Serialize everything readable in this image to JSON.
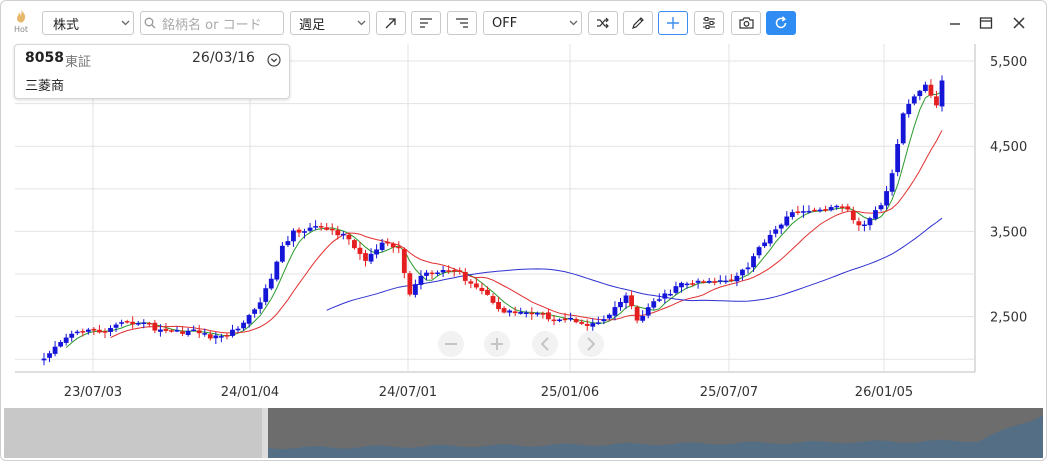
{
  "toolbar": {
    "hot_label": "Hot",
    "type_select": "株式",
    "search_placeholder": "銘柄名 or コード",
    "period_select": "週足",
    "compare_select": "OFF"
  },
  "info": {
    "code": "8058",
    "exchange": "東証",
    "date": "26/03/16",
    "name": "三菱商"
  },
  "chart_data": {
    "type": "candlestick",
    "price_axis_ticks": [
      "5,500",
      "4,500",
      "3,500",
      "2,500"
    ],
    "time_axis_ticks": [
      "23/07/03",
      "24/01/04",
      "24/07/01",
      "25/01/06",
      "25/07/07",
      "26/01/05"
    ],
    "ylim": [
      1850,
      5700
    ],
    "grid": true,
    "up_color": "#1515d8",
    "down_color": "#e51f1f",
    "ma_colors": [
      "#2a9a2a",
      "#e23030",
      "#3030d0"
    ],
    "navigator": true,
    "zoom_controls": [
      "minus",
      "plus",
      "left",
      "right"
    ]
  }
}
